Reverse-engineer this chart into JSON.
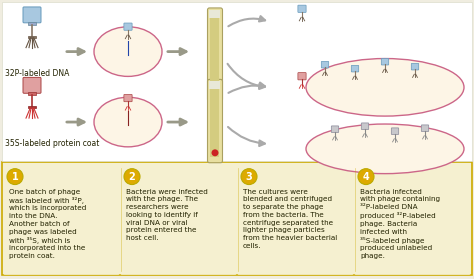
{
  "bg_color": "#f0ede0",
  "top_bg": "#ffffff",
  "bottom_bg": "#f5f0d0",
  "border_color": "#ccaa00",
  "circle_fill": "#fdf5e6",
  "circle_edge": "#cc6688",
  "arrow_color": "#999988",
  "label1": "32P-labeled DNA",
  "label2": "35S-labeled protein coat",
  "step1_num": "1",
  "step2_num": "2",
  "step3_num": "3",
  "step4_num": "4",
  "step1_text": "One batch of phage\nwas labeled with ³²P,\nwhich is incorporated\ninto the DNA.\nAnother batch of\nphage was labeled\nwith ³⁵S, which is\nincorporated into the\nprotein coat.",
  "step2_text": "Bacteria were infected\nwith the phage. The\nresearchers were\nlooking to identify if\nviral DNA or viral\nprotein entered the\nhost cell.",
  "step3_text": "The cultures were\nblended and centrifuged\nto separate the phage\nfrom the bacteria. The\ncentrifuge separated the\nlighter phage particles\nfrom the heavier bacterial\ncells.",
  "step4_text": "Bacteria infected\nwith phage containing\n³²P-labeled DNA\nproduced ³²P-labeled\nphage. Bacteria\ninfected with\n³⁵S-labeled phage\nproduced unlabeled\nphage.",
  "num_circle_color": "#ddaa00",
  "num_circle_edge": "#bbaa00",
  "text_color": "#222200",
  "fontsize_steps": 5.2,
  "fontsize_labels": 5.5,
  "tube_fill": "#e8dfa0",
  "tube_liquid": "#d4cc80",
  "tube_edge": "#aaa060"
}
